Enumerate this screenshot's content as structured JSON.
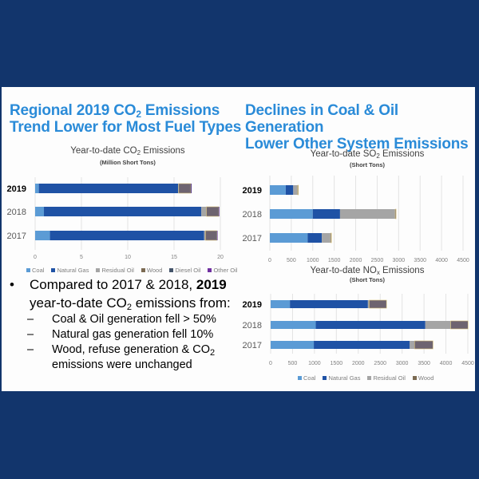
{
  "colors": {
    "background": "#12356c",
    "headline": "#2a8bd8",
    "Coal": "#5b9bd5",
    "Natural Gas": "#1f52a5",
    "Residual Oil": "#a5a5a5",
    "Wood": "#6e6470",
    "Diesel Oil": "#44546a",
    "Other Oil": "#7030a0",
    "wood_legend": "#7b6a52"
  },
  "left": {
    "headline_line1_pre": "Regional 2019 CO",
    "headline_line1_sub": "2",
    "headline_line1_post": " Emissions",
    "headline_line2": "Trend Lower for Most Fuel Types",
    "bullet": {
      "symbol": "•",
      "line1_pre": "Compared to 2017 & 2018, ",
      "line1_bold": "2019",
      "line2_pre": "year-to-date CO",
      "line2_sub": "2",
      "line2_post": " emissions from:",
      "dash": "–",
      "sub_items": [
        "Coal & Oil generation fell > 50%",
        "Natural gas generation fell 10%"
      ],
      "sub_item3_pre": "Wood, refuse generation & CO",
      "sub_item3_sub": "2",
      "sub_item3_line2": "emissions were unchanged"
    }
  },
  "right": {
    "headline_line1": "Declines in Coal & Oil Generation",
    "headline_line2": "Lower Other System Emissions"
  },
  "chart_data": [
    {
      "id": "co2",
      "type": "bar",
      "orientation": "horizontal",
      "stacked": true,
      "title_pre": "Year-to-date CO",
      "title_sub": "2",
      "title_post": " Emissions",
      "subtitle": "(Million Short Tons)",
      "categories": [
        "2019",
        "2018",
        "2017"
      ],
      "bold_category": "2019",
      "xlim": [
        0,
        20
      ],
      "xticks": [
        0,
        5,
        10,
        15,
        20
      ],
      "grid": true,
      "legend_position": "bottom",
      "series": [
        {
          "name": "Coal",
          "values": [
            0.4,
            0.95,
            1.6
          ]
        },
        {
          "name": "Natural Gas",
          "values": [
            15.05,
            17.0,
            16.65
          ]
        },
        {
          "name": "Residual Oil",
          "values": [
            0.05,
            0.55,
            0.15
          ]
        },
        {
          "name": "Wood",
          "values": [
            1.3,
            1.3,
            1.2
          ]
        },
        {
          "name": "Diesel Oil",
          "values": [
            0.05,
            0.05,
            0.05
          ]
        },
        {
          "name": "Other Oil",
          "values": [
            0.05,
            0.05,
            0.05
          ]
        }
      ]
    },
    {
      "id": "so2",
      "type": "bar",
      "orientation": "horizontal",
      "stacked": true,
      "title_pre": "Year-to-date SO",
      "title_sub": "2",
      "title_post": " Emissions",
      "subtitle": "(Short Tons)",
      "categories": [
        "2019",
        "2018",
        "2017"
      ],
      "bold_category": "2019",
      "xlim": [
        0,
        4500
      ],
      "xticks": [
        0,
        500,
        1000,
        1500,
        2000,
        2500,
        3000,
        3500,
        4000,
        4500
      ],
      "grid": true,
      "legend_position": "none",
      "series": [
        {
          "name": "Coal",
          "values": [
            370,
            1000,
            880
          ]
        },
        {
          "name": "Natural Gas",
          "values": [
            175,
            635,
            330
          ]
        },
        {
          "name": "Residual Oil",
          "values": [
            105,
            1285,
            205
          ]
        },
        {
          "name": "Wood",
          "values": [
            15,
            20,
            20
          ]
        }
      ]
    },
    {
      "id": "nox",
      "type": "bar",
      "orientation": "horizontal",
      "stacked": true,
      "title_pre": "Year-to-date NO",
      "title_sub": "x",
      "title_post": " Emissions",
      "subtitle": "(Short Tons)",
      "categories": [
        "2019",
        "2018",
        "2017"
      ],
      "bold_category": "2019",
      "xlim": [
        0,
        4500
      ],
      "xticks": [
        0,
        500,
        1000,
        1500,
        2000,
        2500,
        3000,
        3500,
        4000,
        4500
      ],
      "grid": true,
      "legend_position": "bottom",
      "series": [
        {
          "name": "Coal",
          "values": [
            440,
            1030,
            985
          ]
        },
        {
          "name": "Natural Gas",
          "values": [
            1780,
            2500,
            2190
          ]
        },
        {
          "name": "Residual Oil",
          "values": [
            30,
            580,
            110
          ]
        },
        {
          "name": "Wood",
          "values": [
            395,
            395,
            420
          ]
        }
      ]
    }
  ]
}
